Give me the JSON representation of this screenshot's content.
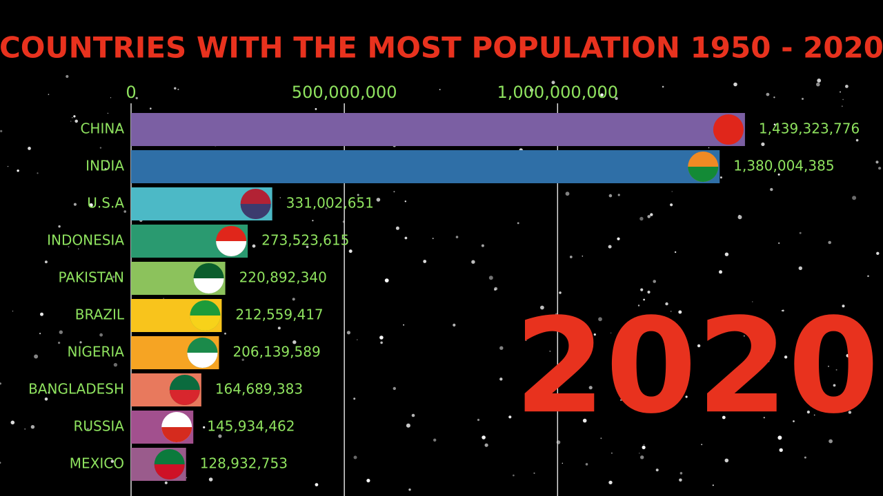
{
  "chart_data": {
    "type": "bar",
    "orientation": "horizontal",
    "title": "COUNTRIES WITH THE MOST POPULATION 1950 - 2020",
    "annotation": "2020",
    "categories": [
      "CHINA",
      "INDIA",
      "U.S.A",
      "INDONESIA",
      "PAKISTAN",
      "BRAZIL",
      "NIGERIA",
      "BANGLADESH",
      "RUSSIA",
      "MEXICO"
    ],
    "values": [
      1439323776,
      1380004385,
      331002651,
      273523615,
      220892340,
      212559417,
      206139589,
      164689383,
      145934462,
      128932753
    ],
    "value_labels": [
      "1,439,323,776",
      "1,380,004,385",
      "331,002,651",
      "273,523,615",
      "220,892,340",
      "212,559,417",
      "206,139,589",
      "164,689,383",
      "145,934,462",
      "128,932,753"
    ],
    "colors": [
      "#7b5fa3",
      "#2f6fa7",
      "#4cb9c6",
      "#2a9a70",
      "#8cc25c",
      "#f8c41c",
      "#f6a423",
      "#e8795d",
      "#a2508e",
      "#9a5b8c"
    ],
    "xlim": [
      0,
      1750000000
    ],
    "xticks": [
      0,
      {
        "value": 500000000,
        "label": "500,000,000"
      },
      {
        "value": 1000000000,
        "label": "1,000,000,000"
      }
    ],
    "grid": true
  }
}
